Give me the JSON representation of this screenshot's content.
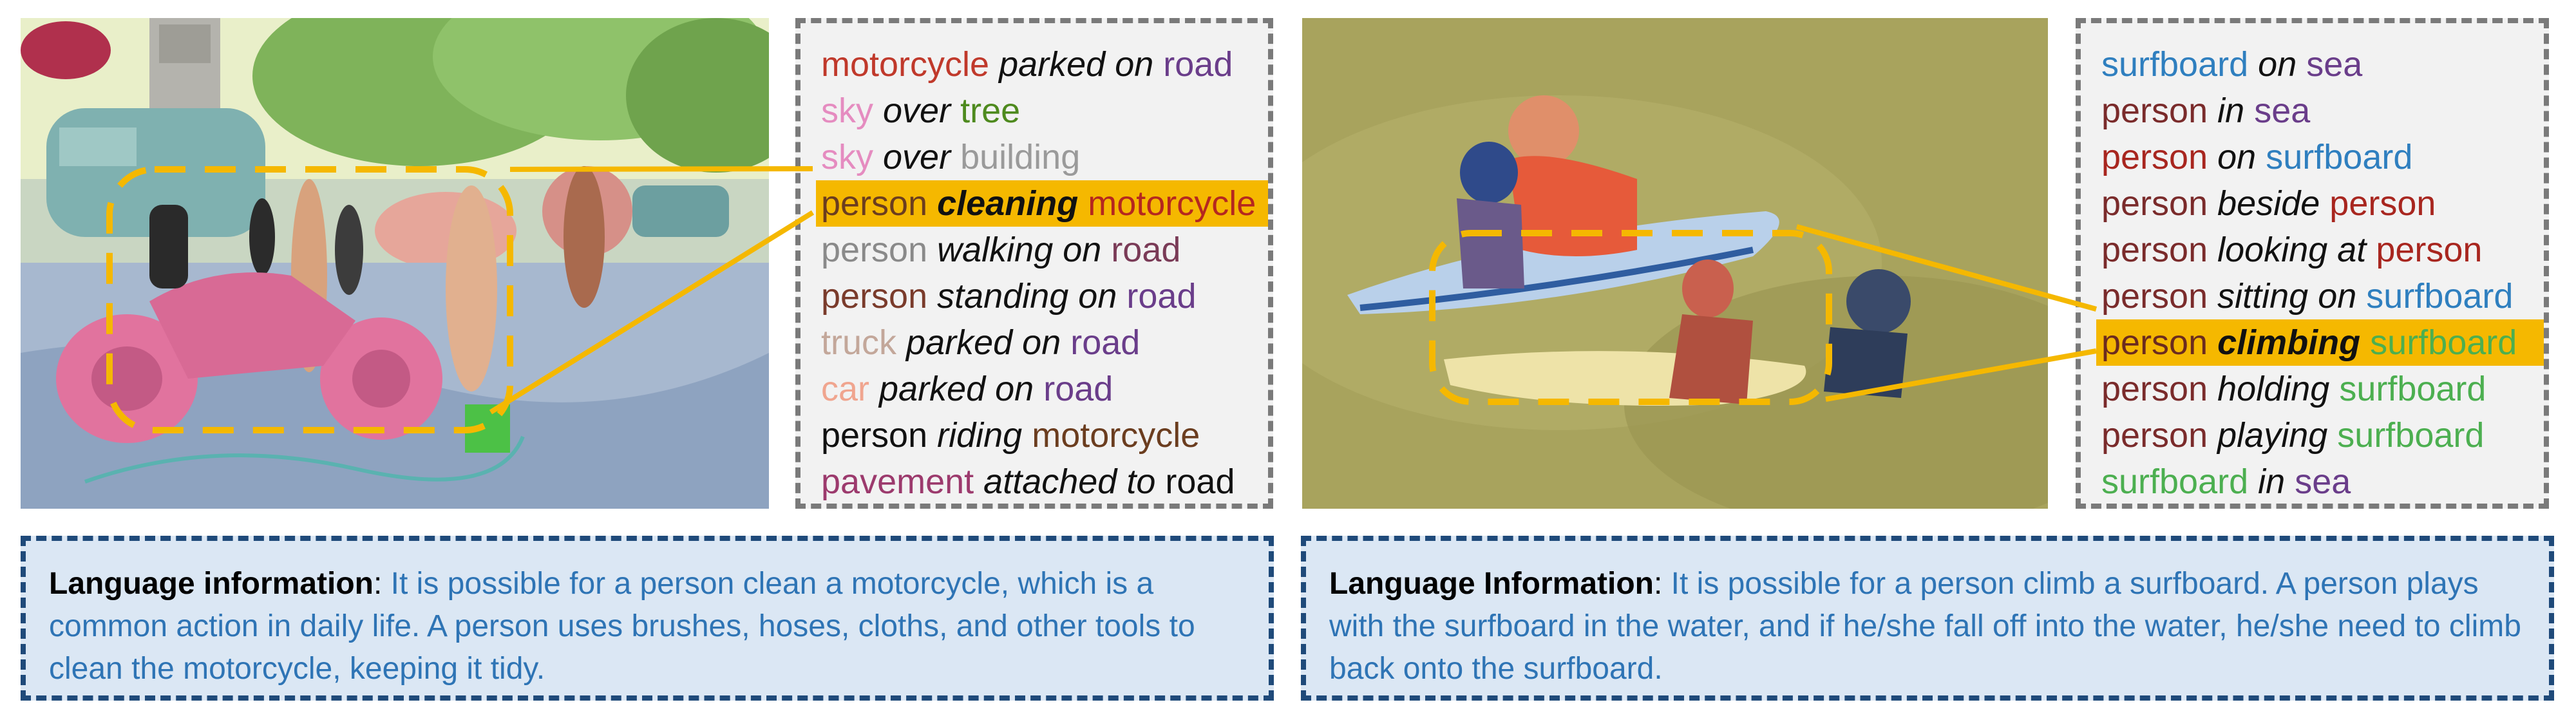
{
  "panels": [
    {
      "relations": [
        {
          "s": "motorcycle",
          "sc": "#c0392b",
          "p": "parked on",
          "o": "road",
          "oc": "#6a3d8a"
        },
        {
          "s": "sky",
          "sc": "#e58cc0",
          "p": "over",
          "o": "tree",
          "oc": "#4e8a1e"
        },
        {
          "s": "sky",
          "sc": "#e58cc0",
          "p": "over",
          "o": "building",
          "oc": "#9a9a9a"
        },
        {
          "s": "person",
          "sc": "#6b3d1f",
          "p": "cleaning",
          "o": "motorcycle",
          "oc": "#b5271f",
          "hl": true
        },
        {
          "s": "person",
          "sc": "#8a8a8a",
          "p": "walking on",
          "o": "road",
          "oc": "#7a3b57"
        },
        {
          "s": "person",
          "sc": "#7a3b2b",
          "p": "standing on",
          "o": "road",
          "oc": "#6a3d8a"
        },
        {
          "s": "truck",
          "sc": "#c3a79a",
          "p": "parked on",
          "o": "road",
          "oc": "#6a3d8a"
        },
        {
          "s": "car",
          "sc": "#f0a58f",
          "p": "parked on",
          "o": "road",
          "oc": "#6a3d8a"
        },
        {
          "s": "person",
          "sc": "#111111",
          "p": "riding",
          "o": "motorcycle",
          "oc": "#6b3d1f"
        },
        {
          "s": "pavement",
          "sc": "#9c3a6d",
          "p": "attached to",
          "o": "road",
          "oc": "#111111"
        }
      ],
      "language_label": "Language information",
      "language_text": "It is possible for a person clean a motorcycle, which is a common action in daily life. A person uses brushes, hoses, cloths, and other tools to clean the motorcycle, keeping it tidy."
    },
    {
      "relations": [
        {
          "s": "surfboard",
          "sc": "#2f7fbf",
          "p": "on",
          "o": "sea",
          "oc": "#6a3d8a"
        },
        {
          "s": "person",
          "sc": "#7a2b2b",
          "p": "in",
          "o": "sea",
          "oc": "#6a3d8a"
        },
        {
          "s": "person",
          "sc": "#a8261f",
          "p": "on",
          "o": "surfboard",
          "oc": "#2f7fbf"
        },
        {
          "s": "person",
          "sc": "#7a2b2b",
          "p": "beside",
          "o": "person",
          "oc": "#a8261f"
        },
        {
          "s": "person",
          "sc": "#7a2b2b",
          "p": "looking at",
          "o": "person",
          "oc": "#a8261f"
        },
        {
          "s": "person",
          "sc": "#7a2b2b",
          "p": "sitting on",
          "o": "surfboard",
          "oc": "#2f7fbf"
        },
        {
          "s": "person",
          "sc": "#6b2b1f",
          "p": "climbing",
          "o": "surfboard",
          "oc": "#4caf50",
          "hl": true
        },
        {
          "s": "person",
          "sc": "#7a2b2b",
          "p": "holding",
          "o": "surfboard",
          "oc": "#4caf50"
        },
        {
          "s": "person",
          "sc": "#7a2b2b",
          "p": "playing",
          "o": "surfboard",
          "oc": "#4caf50"
        },
        {
          "s": "surfboard",
          "sc": "#4caf50",
          "p": "in",
          "o": "sea",
          "oc": "#6a3d8a"
        }
      ],
      "language_label": "Language Information",
      "language_text": "It is possible for a person climb a surfboard. A person plays with the surfboard in the water, and if he/she fall off into the water, he/she need to climb back onto the surfboard."
    }
  ],
  "colors": {
    "highlight": "#f5b800",
    "connector": "#f5b800",
    "relation_border": "#7a7a7a",
    "language_border": "#1f4a7a",
    "language_bg": "#dbe7f4",
    "language_text": "#2e74b5"
  }
}
